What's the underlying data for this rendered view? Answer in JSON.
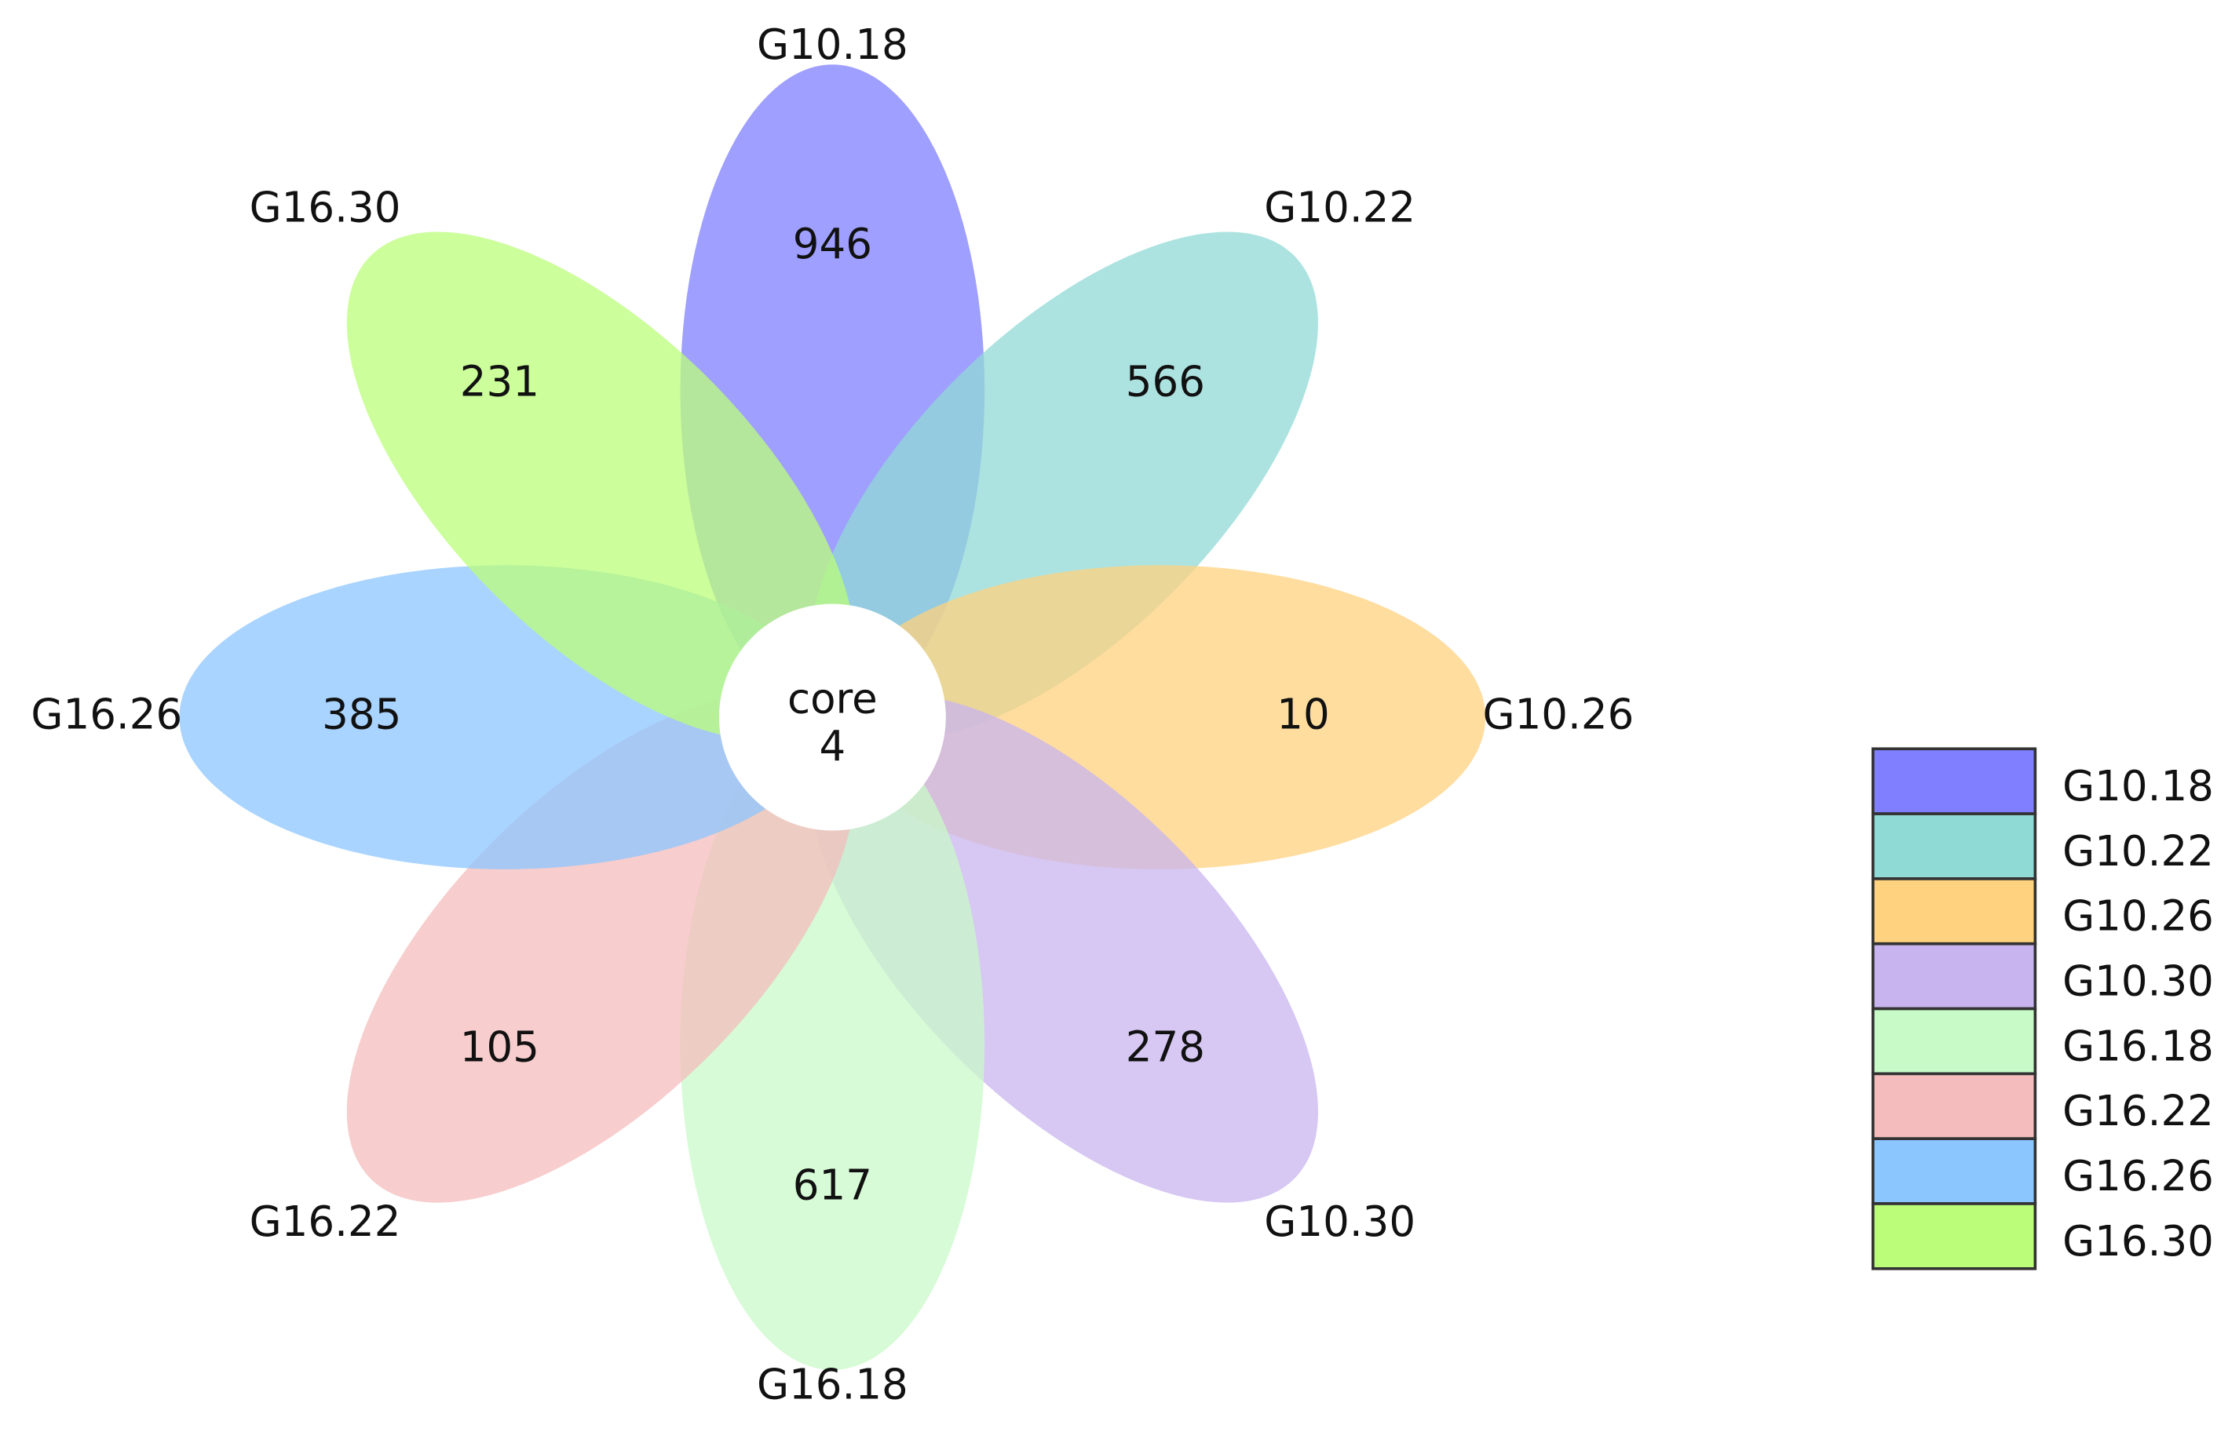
{
  "chart_data": {
    "type": "flower",
    "categories": [
      "G10.18",
      "G10.22",
      "G10.26",
      "G10.30",
      "G16.18",
      "G16.22",
      "G16.26",
      "G16.30"
    ],
    "values": [
      946,
      566,
      10,
      278,
      617,
      105,
      385,
      231
    ],
    "colors": [
      "#7f7fff",
      "#90dad5",
      "#ffd27f",
      "#c8b4ef",
      "#c8fac8",
      "#f4bcbc",
      "#8cc6ff",
      "#bbfd79"
    ],
    "core": {
      "label": "core",
      "value": 4
    },
    "legend": "right"
  }
}
